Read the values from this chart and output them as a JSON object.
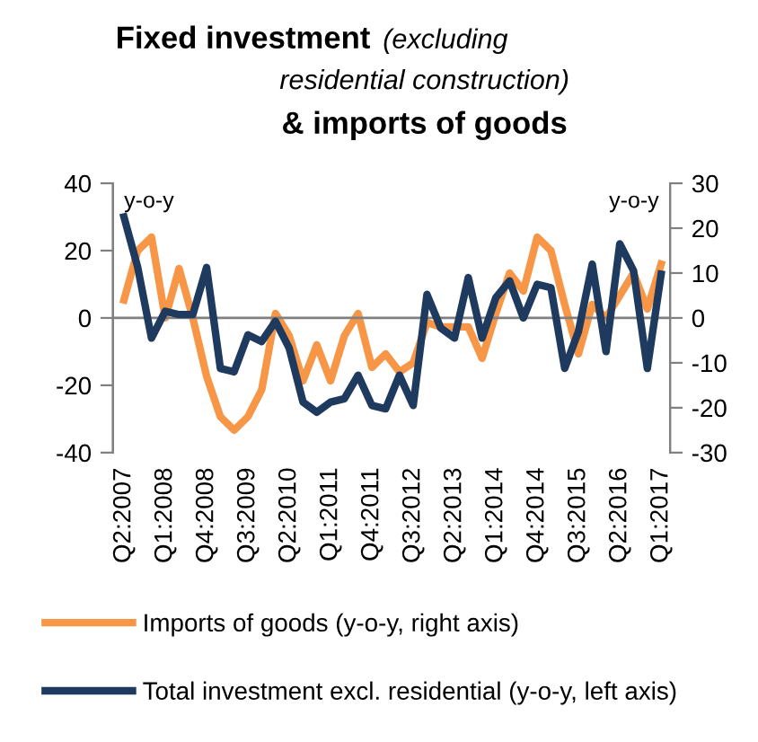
{
  "chart_data": {
    "type": "line",
    "title": "Fixed investment",
    "subtitle": "(excluding residential construction)",
    "annotations": [
      "& imports of goods",
      "y-o-y",
      "y-o-y"
    ],
    "categories": [
      "Q2:2007",
      null,
      null,
      "Q1:2008",
      null,
      null,
      "Q4:2008",
      null,
      null,
      "Q3:2009",
      null,
      null,
      "Q2:2010",
      null,
      null,
      "Q1:2011",
      null,
      null,
      "Q4:2011",
      null,
      null,
      "Q3:2012",
      null,
      null,
      "Q2:2013",
      null,
      null,
      "Q1:2014",
      null,
      null,
      "Q4:2014",
      null,
      null,
      "Q3:2015",
      null,
      null,
      "Q2:2016",
      null,
      null,
      "Q1:2017"
    ],
    "series": [
      {
        "name": "Imports of goods (y-o-y, right axis)",
        "color": "#f79646",
        "axis": "y2",
        "values": [
          4,
          15,
          18,
          0,
          11,
          0,
          -13,
          -22,
          -25,
          -22,
          -16,
          1,
          -4,
          -14,
          -6,
          -14,
          -4,
          1,
          -11,
          -8,
          -12,
          -10,
          -1,
          -2,
          -2,
          -2,
          -9,
          1,
          10,
          6,
          18,
          15,
          3,
          -8,
          3,
          0,
          5,
          10,
          2,
          12
        ]
      },
      {
        "name": "Total investment excl. residential (y-o-y, left axis)",
        "color": "#1f3a5f",
        "values": [
          30,
          15,
          -6,
          2,
          1,
          1,
          15,
          -15,
          -16,
          -5,
          -7,
          -1,
          -9,
          -25,
          -28,
          -25,
          -24,
          -17,
          -26,
          -27,
          -17,
          -26,
          7,
          -3,
          -6,
          12,
          -6,
          6,
          11,
          0,
          10,
          9,
          -15,
          -4,
          16,
          -10,
          22,
          14,
          -15,
          13
        ]
      }
    ],
    "ylim": [
      -40,
      40
    ],
    "yticks": [
      -40,
      -20,
      0,
      20,
      40
    ],
    "y2lim": [
      -30,
      30
    ],
    "y2ticks": [
      -30,
      -20,
      -10,
      0,
      10,
      20,
      30
    ],
    "ref_lines": [
      {
        "axis": "y",
        "value": 0,
        "color": "#808080"
      }
    ],
    "legend": "bottom",
    "grid": false
  }
}
